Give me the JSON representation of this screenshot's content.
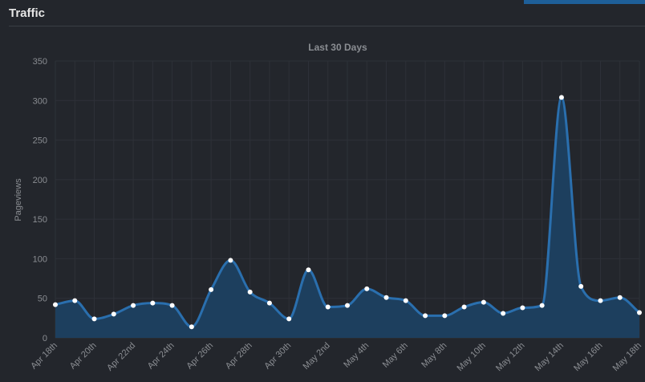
{
  "header": {
    "title": "Traffic"
  },
  "colors": {
    "background": "#23262c",
    "grid": "#2e3138",
    "line": "#2a6fae",
    "area": "#1d3f5e",
    "marker": "#ffffff",
    "accent": "#1e5f99"
  },
  "chart_data": {
    "type": "area",
    "title": "Last 30 Days",
    "ylabel": "Pageviews",
    "xlabel": "",
    "ylim": [
      0,
      350
    ],
    "yticks": [
      0,
      50,
      100,
      150,
      200,
      250,
      300,
      350
    ],
    "grid": true,
    "legend": "none",
    "x": [
      "Apr 18th",
      "Apr 19th",
      "Apr 20th",
      "Apr 21st",
      "Apr 22nd",
      "Apr 23rd",
      "Apr 24th",
      "Apr 25th",
      "Apr 26th",
      "Apr 27th",
      "Apr 28th",
      "Apr 29th",
      "Apr 30th",
      "May 1st",
      "May 2nd",
      "May 3rd",
      "May 4th",
      "May 5th",
      "May 6th",
      "May 7th",
      "May 8th",
      "May 9th",
      "May 10th",
      "May 11th",
      "May 12th",
      "May 13th",
      "May 14th",
      "May 15th",
      "May 16th",
      "May 17th",
      "May 18th"
    ],
    "xtick_labels": [
      "Apr 18th",
      "Apr 20th",
      "Apr 22nd",
      "Apr 24th",
      "Apr 26th",
      "Apr 28th",
      "Apr 30th",
      "May 2nd",
      "May 4th",
      "May 6th",
      "May 8th",
      "May 10th",
      "May 12th",
      "May 14th",
      "May 16th",
      "May 18th"
    ],
    "series": [
      {
        "values": [
          42,
          47,
          24,
          30,
          41,
          44,
          41,
          14,
          61,
          98,
          58,
          44,
          24,
          86,
          39,
          41,
          62,
          51,
          47,
          28,
          28,
          39,
          45,
          31,
          38,
          41,
          304,
          65,
          47,
          51,
          32
        ]
      }
    ]
  }
}
